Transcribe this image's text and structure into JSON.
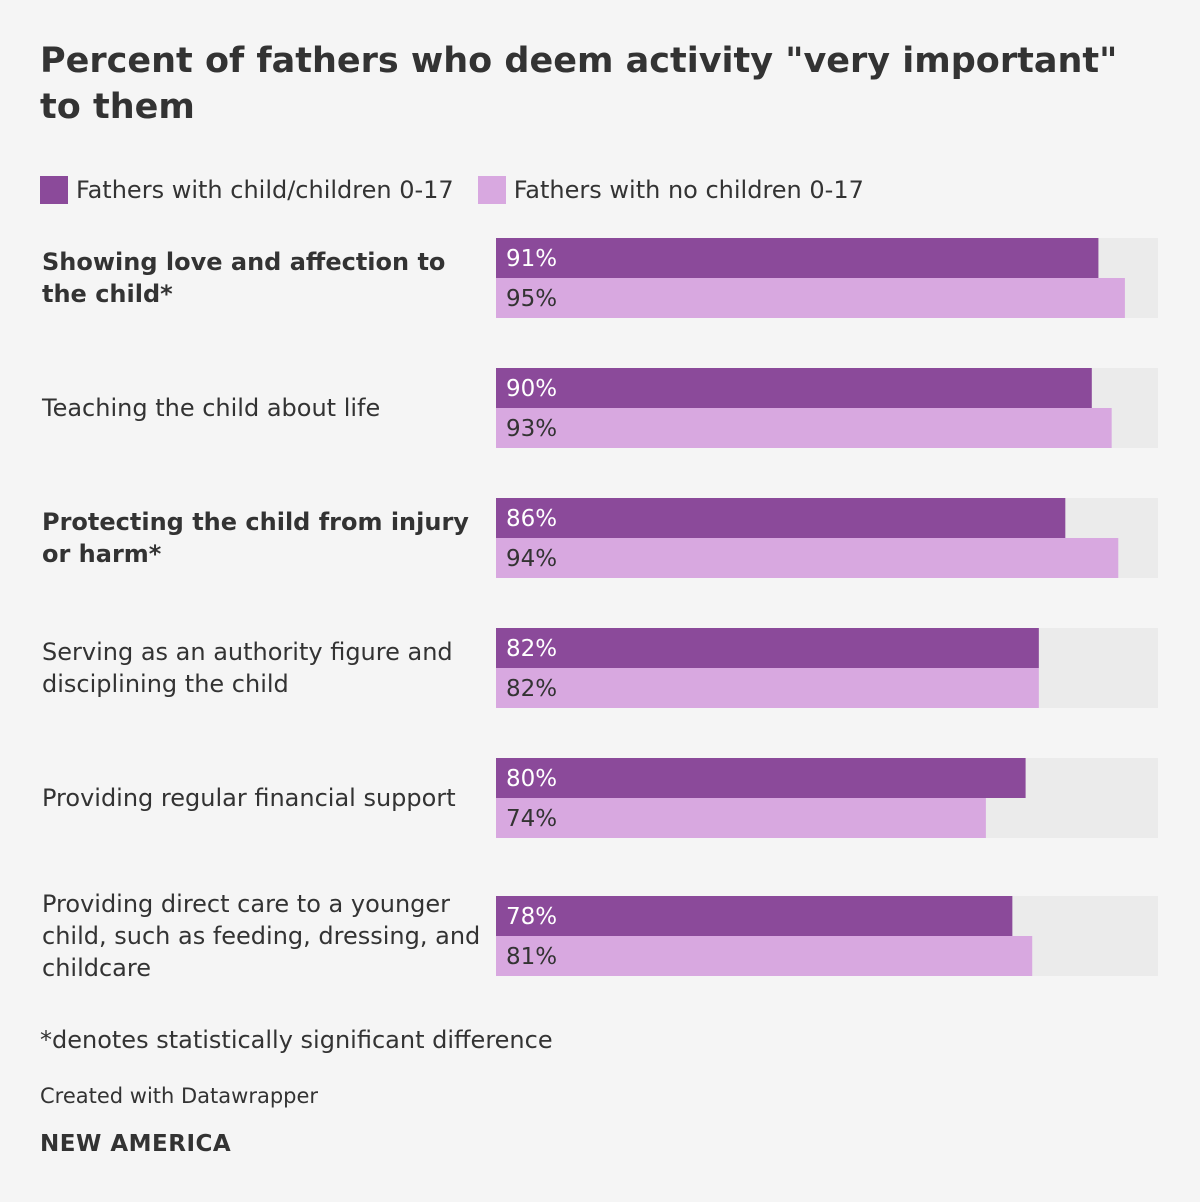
{
  "chart_data": {
    "type": "bar",
    "orientation": "horizontal",
    "title": "Percent of fathers who deem activity \"very important\" to them",
    "categories": [
      "Showing love and affection to the child*",
      "Teaching the child about life",
      "Protecting the child from injury or harm*",
      "Serving as an authority figure and disciplining the child",
      "Providing regular financial support",
      "Providing direct care to a younger child, such as feeding, dressing, and childcare"
    ],
    "significant": [
      true,
      false,
      true,
      false,
      false,
      false
    ],
    "series": [
      {
        "name": "Fathers with child/children 0-17",
        "color": "#8b4a9a",
        "label_color": "#ffffff",
        "values": [
          91,
          90,
          86,
          82,
          80,
          78
        ],
        "labels": [
          "91%",
          "90%",
          "86%",
          "82%",
          "80%",
          "78%"
        ]
      },
      {
        "name": "Fathers with no children 0-17",
        "color": "#d8a8e0",
        "label_color": "#333333",
        "values": [
          95,
          93,
          94,
          82,
          74,
          81
        ],
        "labels": [
          "95%",
          "93%",
          "94%",
          "82%",
          "74%",
          "81%"
        ]
      }
    ],
    "xlim": [
      0,
      100
    ],
    "track_color": "#ebebeb",
    "legend_position": "top-left",
    "grid": false
  },
  "footnote": "*denotes statistically significant difference",
  "credit": "Created with Datawrapper",
  "brand": "NEW AMERICA"
}
